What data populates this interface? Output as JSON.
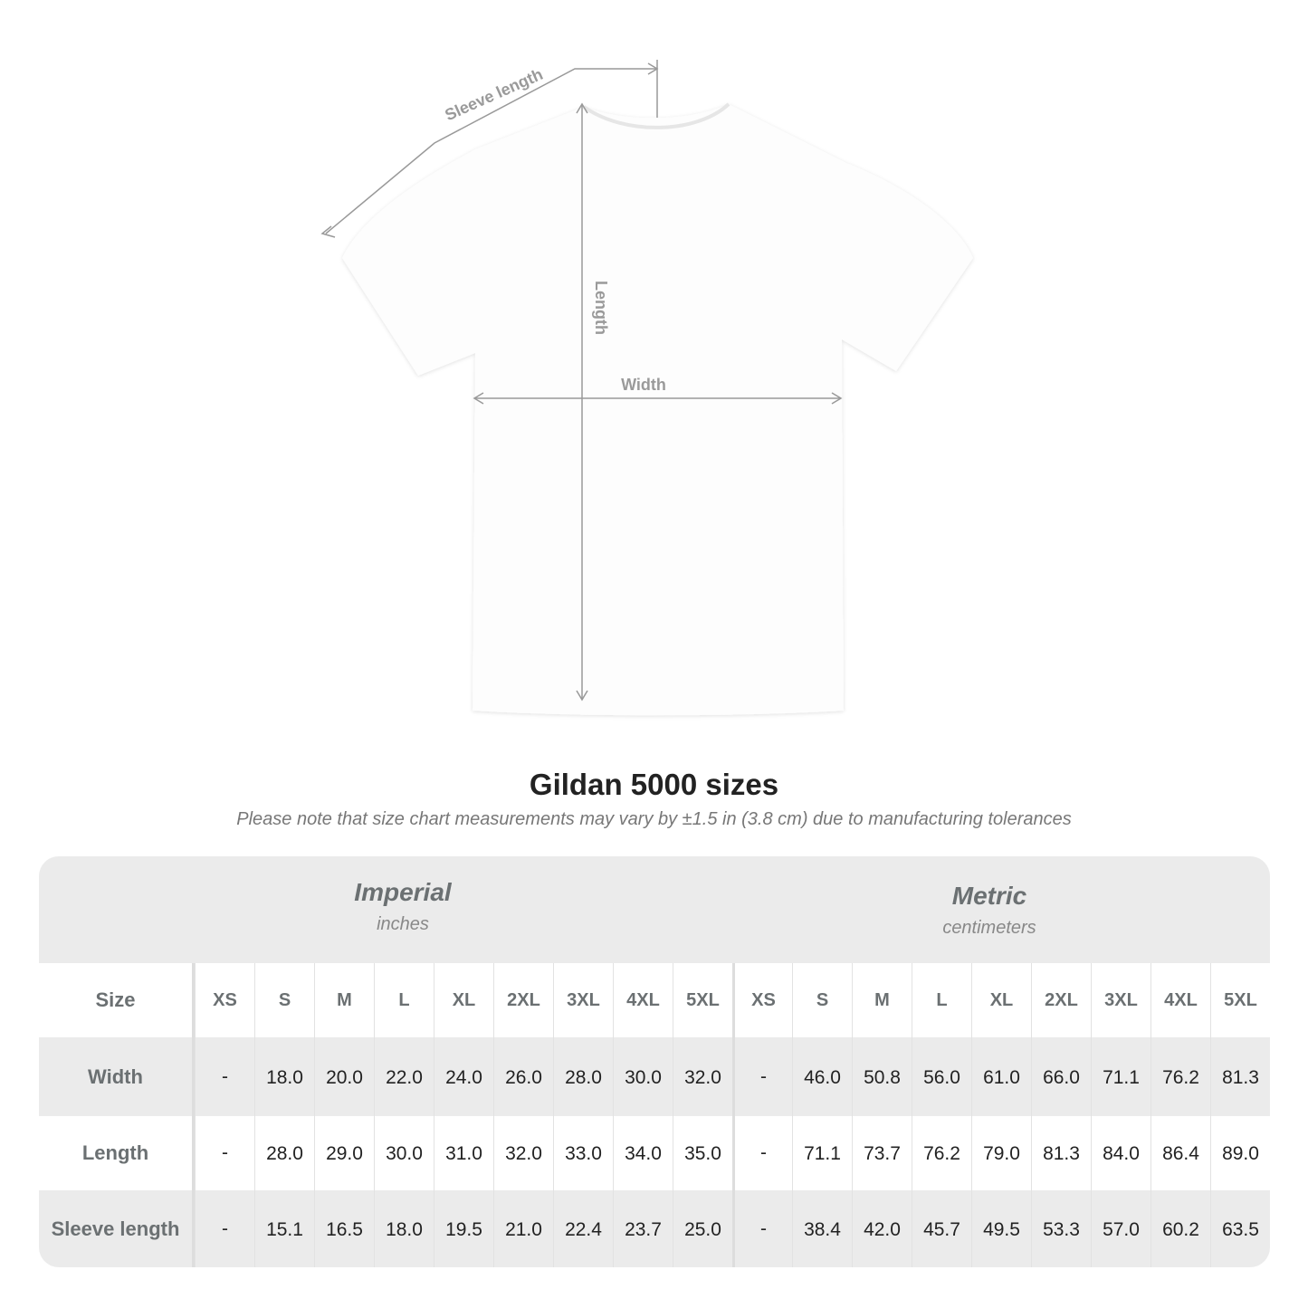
{
  "diagram": {
    "sleeve_label": "Sleeve length",
    "length_label": "Length",
    "width_label": "Width",
    "line_color": "#999999"
  },
  "title": "Gildan 5000 sizes",
  "subtitle": "Please note that size chart measurements may vary by ±1.5 in (3.8 cm) due to manufacturing tolerances",
  "table": {
    "imperial": {
      "name": "Imperial",
      "unit": "inches"
    },
    "metric": {
      "name": "Metric",
      "unit": "centimeters"
    },
    "size_label": "Size",
    "sizes": [
      "XS",
      "S",
      "M",
      "L",
      "XL",
      "2XL",
      "3XL",
      "4XL",
      "5XL"
    ],
    "rows": [
      {
        "label": "Width",
        "imperial": [
          "-",
          "18.0",
          "20.0",
          "22.0",
          "24.0",
          "26.0",
          "28.0",
          "30.0",
          "32.0"
        ],
        "metric": [
          "-",
          "46.0",
          "50.8",
          "56.0",
          "61.0",
          "66.0",
          "71.1",
          "76.2",
          "81.3"
        ]
      },
      {
        "label": "Length",
        "imperial": [
          "-",
          "28.0",
          "29.0",
          "30.0",
          "31.0",
          "32.0",
          "33.0",
          "34.0",
          "35.0"
        ],
        "metric": [
          "-",
          "71.1",
          "73.7",
          "76.2",
          "79.0",
          "81.3",
          "84.0",
          "86.4",
          "89.0"
        ]
      },
      {
        "label": "Sleeve length",
        "imperial": [
          "-",
          "15.1",
          "16.5",
          "18.0",
          "19.5",
          "21.0",
          "22.4",
          "23.7",
          "25.0"
        ],
        "metric": [
          "-",
          "38.4",
          "42.0",
          "45.7",
          "49.5",
          "53.3",
          "57.0",
          "60.2",
          "63.5"
        ]
      }
    ]
  }
}
